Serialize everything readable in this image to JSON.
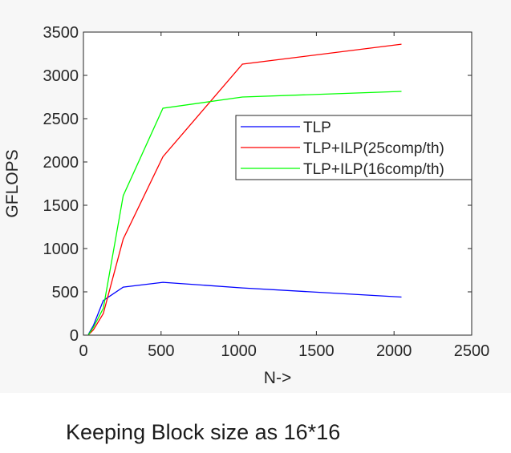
{
  "chart_data": {
    "type": "line",
    "title": "",
    "xlabel": "N->",
    "ylabel": "GFLOPS",
    "xlim": [
      0,
      2500
    ],
    "ylim": [
      0,
      3500
    ],
    "xticks": [
      0,
      500,
      1000,
      1500,
      2000,
      2500
    ],
    "yticks": [
      0,
      500,
      1000,
      1500,
      2000,
      2500,
      3000,
      3500
    ],
    "x": [
      32,
      64,
      128,
      256,
      512,
      1024,
      2048
    ],
    "series": [
      {
        "name": "TLP",
        "color": "#0000ff",
        "values": [
          10,
          110,
          400,
          555,
          610,
          545,
          440
        ]
      },
      {
        "name": "TLP+ILP(25comp/th)",
        "color": "#ff0000",
        "values": [
          5,
          60,
          250,
          1110,
          2060,
          3130,
          3360
        ]
      },
      {
        "name": "TLP+ILP(16comp/th)",
        "color": "#00ff00",
        "values": [
          5,
          90,
          310,
          1610,
          2620,
          2750,
          2815
        ]
      }
    ],
    "legend_position": "upper-right",
    "grid": false
  },
  "caption": "Keeping Block size as 16*16"
}
